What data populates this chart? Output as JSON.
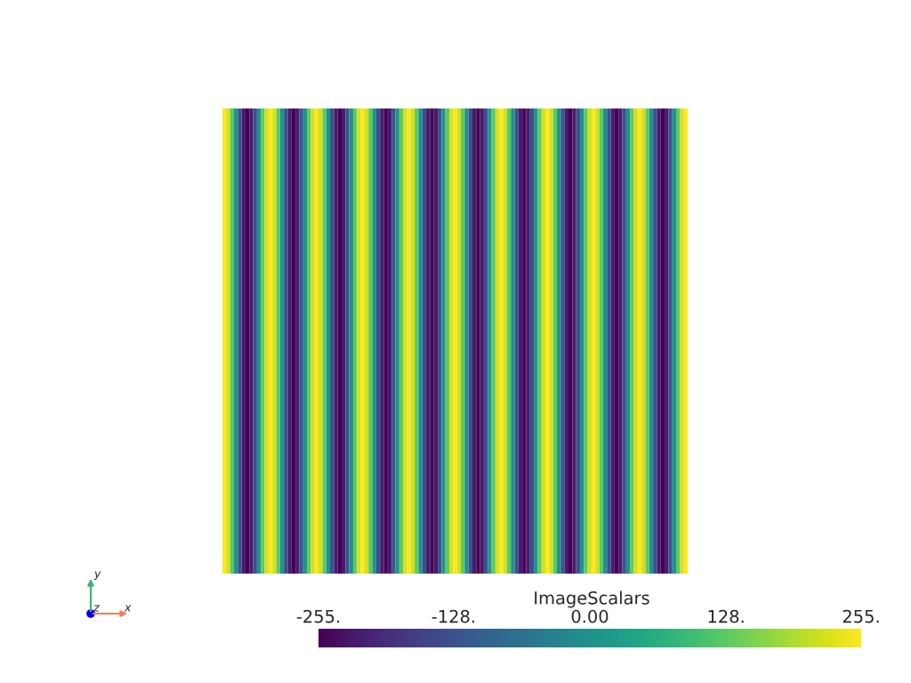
{
  "chart_data": {
    "type": "heatmap",
    "categories": [
      null,
      null,
      null,
      null,
      null,
      null,
      null,
      null,
      null,
      null,
      null,
      null,
      null,
      null,
      null,
      null,
      null,
      null,
      null,
      null,
      null,
      null,
      null,
      null,
      null,
      null,
      null,
      null,
      null,
      null,
      null,
      null,
      null,
      null,
      null,
      null,
      null,
      null,
      null,
      null,
      null,
      null,
      null,
      null,
      null,
      null,
      null,
      null,
      null,
      null,
      null,
      null,
      null,
      null,
      null,
      null,
      null,
      null,
      null,
      null,
      null,
      null,
      null,
      null,
      null,
      null,
      null,
      null,
      null,
      null,
      null,
      null,
      null,
      null,
      null,
      null,
      null,
      null,
      null,
      null,
      null,
      null,
      null,
      null,
      null,
      null,
      null,
      null,
      null,
      null,
      null,
      null,
      null,
      null,
      null,
      null,
      null,
      null,
      null,
      null,
      null,
      null,
      null,
      null,
      null,
      null,
      null,
      null,
      null,
      null,
      null,
      null,
      null,
      null,
      null,
      null,
      null,
      null,
      null,
      null,
      null
    ],
    "y_categories": [
      null
    ],
    "cells": [
      [
        255,
        221,
        128,
        0,
        -128,
        -221,
        -255,
        -221,
        -128,
        0,
        128,
        221,
        255,
        221,
        128,
        0,
        -128,
        -221,
        -255,
        -221,
        -128,
        0,
        128,
        221,
        255,
        221,
        128,
        0,
        -128,
        -221,
        -255,
        -221,
        -128,
        0,
        128,
        221,
        255,
        221,
        128,
        0,
        -128,
        -221,
        -255,
        -221,
        -128,
        0,
        128,
        221,
        255,
        221,
        128,
        0,
        -128,
        -221,
        -255,
        -221,
        -128,
        0,
        128,
        221,
        255,
        221,
        128,
        0,
        -128,
        -221,
        -255,
        -221,
        -128,
        0,
        128,
        221,
        255,
        221,
        128,
        0,
        -128,
        -221,
        -255,
        -221,
        -128,
        0,
        128,
        221,
        255,
        221,
        128,
        0,
        -128,
        -221,
        -255,
        -221,
        -128,
        0,
        128,
        221,
        255,
        221,
        128,
        0,
        -128,
        -221,
        -255,
        -221,
        -128,
        0,
        128,
        221,
        255,
        221,
        128,
        0,
        -128,
        -221,
        -255,
        -221,
        -128,
        0,
        128,
        221,
        255
      ]
    ],
    "clabel": "ImageScalars",
    "clim": [
      -255,
      255
    ],
    "cticks": [
      {
        "value": -255,
        "label": "-255."
      },
      {
        "value": -128,
        "label": "-128."
      },
      {
        "value": 0,
        "label": "0.00"
      },
      {
        "value": 128,
        "label": "128."
      },
      {
        "value": 255,
        "label": "255."
      }
    ],
    "annotations": [
      "y",
      "z",
      "x"
    ]
  }
}
